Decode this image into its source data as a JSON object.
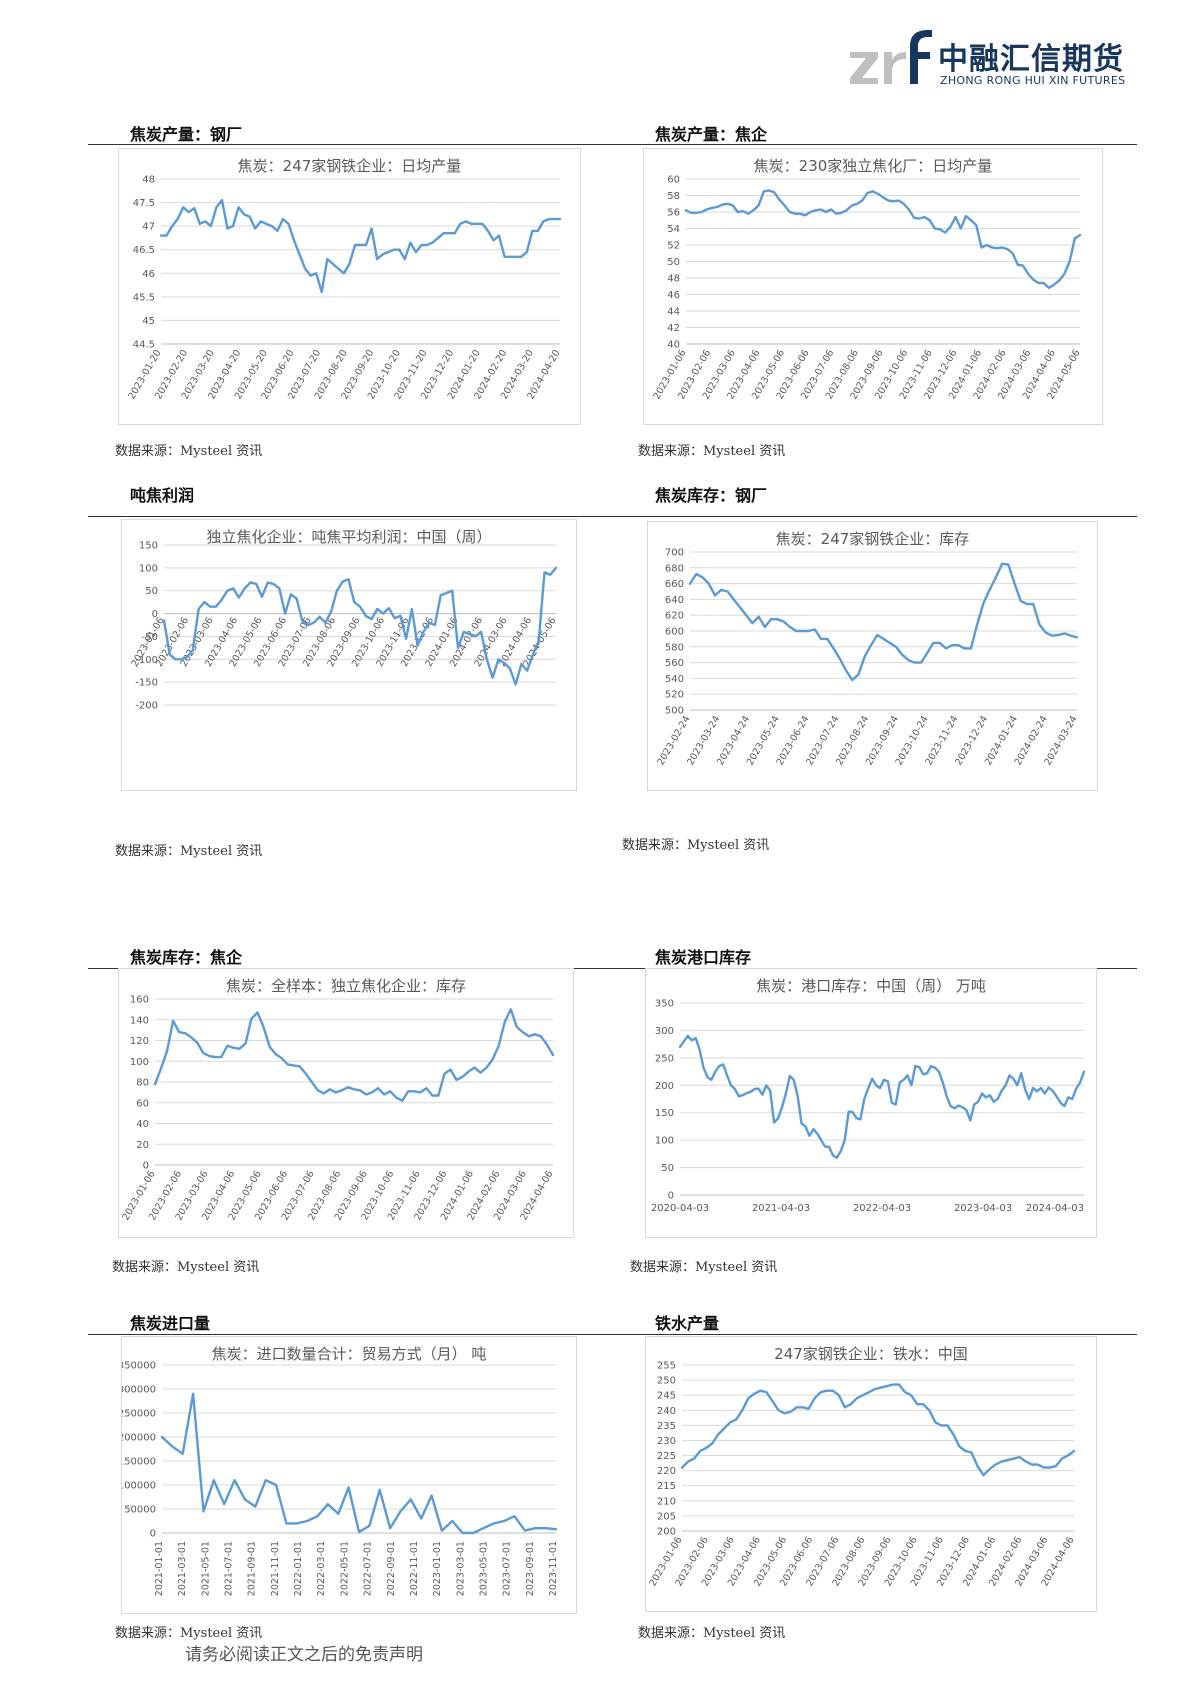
{
  "header": {
    "logo_cn": "中融汇信期货",
    "logo_en": "ZHONG RONG HUI XIN FUTURES",
    "logo_mark": "zrf"
  },
  "footer": {
    "disclaimer": "请务必阅读正文之后的免责声明"
  },
  "colors": {
    "line": "#5b9bd5",
    "grid": "#d9d9d9",
    "axis_text": "#595959",
    "brand": "#17375e"
  },
  "sections": [
    {
      "title": "焦炭产量：钢厂",
      "source": "数据来源：Mysteel 资讯"
    },
    {
      "title": "焦炭产量：焦企",
      "source": "数据来源：Mysteel 资讯"
    },
    {
      "title": "吨焦利润",
      "source": "数据来源：Mysteel 资讯"
    },
    {
      "title": "焦炭库存：钢厂",
      "source": "数据来源：Mysteel 资讯"
    },
    {
      "title": "焦炭库存：焦企",
      "source": "数据来源：Mysteel 资讯"
    },
    {
      "title": "焦炭港口库存",
      "source": "数据来源：Mysteel 资讯"
    },
    {
      "title": "焦炭进口量",
      "source": "数据来源：Mysteel 资讯"
    },
    {
      "title": "铁水产量",
      "source": "数据来源：Mysteel 资讯"
    }
  ],
  "chart_data": [
    {
      "type": "line",
      "title": "焦炭：247家钢铁企业：日均产量",
      "ylim": [
        44.5,
        48
      ],
      "yticks": [
        "44.5",
        "45",
        "45.5",
        "46",
        "46.5",
        "47",
        "47.5",
        "48"
      ],
      "xticks": [
        "2023-01-20",
        "2023-02-20",
        "2023-03-20",
        "2023-04-20",
        "2023-05-20",
        "2023-06-20",
        "2023-07-20",
        "2023-08-20",
        "2023-09-20",
        "2023-10-20",
        "2023-11-20",
        "2023-12-20",
        "2024-01-20",
        "2024-02-20",
        "2024-03-20",
        "2024-04-20"
      ],
      "values": [
        46.8,
        46.8,
        47.0,
        47.15,
        47.4,
        47.3,
        47.38,
        47.05,
        47.1,
        47.0,
        47.4,
        47.55,
        46.95,
        47.0,
        47.4,
        47.25,
        47.2,
        46.95,
        47.1,
        47.05,
        47.0,
        46.9,
        47.15,
        47.05,
        46.7,
        46.4,
        46.1,
        45.95,
        46.0,
        45.6,
        46.3,
        46.2,
        46.1,
        46.0,
        46.2,
        46.6,
        46.6,
        46.6,
        46.95,
        46.3,
        46.4,
        46.45,
        46.5,
        46.5,
        46.3,
        46.65,
        46.45,
        46.6,
        46.6,
        46.65,
        46.75,
        46.85,
        46.85,
        46.85,
        47.05,
        47.1,
        47.05,
        47.05,
        47.05,
        46.9,
        46.7,
        46.8,
        46.35,
        46.35,
        46.35,
        46.35,
        46.45,
        46.9,
        46.9,
        47.1,
        47.15,
        47.15,
        47.15
      ]
    },
    {
      "type": "line",
      "title": "焦炭：230家独立焦化厂：日均产量",
      "ylim": [
        40,
        60
      ],
      "yticks": [
        "40",
        "42",
        "44",
        "46",
        "48",
        "50",
        "52",
        "54",
        "56",
        "58",
        "60"
      ],
      "xticks": [
        "2023-01-06",
        "2023-02-06",
        "2023-03-06",
        "2023-04-06",
        "2023-05-06",
        "2023-06-06",
        "2023-07-06",
        "2023-08-06",
        "2023-09-06",
        "2023-10-06",
        "2023-11-06",
        "2023-12-06",
        "2024-01-06",
        "2024-02-06",
        "2024-03-06",
        "2024-04-06",
        "2024-05-06"
      ],
      "values": [
        56.2,
        55.9,
        55.9,
        56.0,
        56.3,
        56.5,
        56.6,
        56.9,
        57.0,
        56.8,
        56.0,
        56.1,
        55.8,
        56.2,
        56.8,
        58.5,
        58.6,
        58.4,
        57.5,
        56.8,
        56.0,
        55.8,
        55.8,
        55.6,
        56.0,
        56.2,
        56.3,
        56.0,
        56.3,
        55.8,
        55.9,
        56.2,
        56.8,
        57.0,
        57.4,
        58.3,
        58.5,
        58.2,
        57.8,
        57.4,
        57.3,
        57.4,
        57.0,
        56.3,
        55.3,
        55.2,
        55.4,
        55.0,
        54.0,
        53.9,
        53.5,
        54.2,
        55.4,
        54.0,
        55.5,
        55.0,
        54.4,
        51.7,
        52.0,
        51.7,
        51.6,
        51.7,
        51.5,
        51.0,
        49.6,
        49.5,
        48.5,
        47.8,
        47.4,
        47.4,
        46.8,
        47.2,
        47.7,
        48.5,
        50.0,
        52.8,
        53.2
      ]
    },
    {
      "type": "line",
      "title": "独立焦化企业：吨焦平均利润：中国（周）",
      "ylim": [
        -200,
        150
      ],
      "yticks": [
        "-200",
        "-150",
        "-100",
        "-50",
        "0",
        "50",
        "100",
        "150"
      ],
      "xticks": [
        "2023-01-06",
        "2023-02-06",
        "2023-03-06",
        "2023-04-06",
        "2023-05-06",
        "2023-06-06",
        "2023-07-06",
        "2023-08-06",
        "2023-09-06",
        "2023-10-06",
        "2023-11-06",
        "2023-12-06",
        "2024-01-06",
        "2024-02-06",
        "2024-03-06",
        "2024-04-06",
        "2024-05-06"
      ],
      "values": [
        -15,
        -90,
        -100,
        -100,
        -95,
        -80,
        10,
        25,
        15,
        15,
        30,
        50,
        55,
        35,
        55,
        68,
        65,
        37,
        68,
        65,
        55,
        0,
        42,
        33,
        -17,
        -25,
        -20,
        -7,
        -20,
        5,
        50,
        70,
        75,
        25,
        15,
        -5,
        -12,
        10,
        0,
        12,
        -10,
        -5,
        -55,
        10,
        -70,
        -40,
        -20,
        -25,
        40,
        45,
        50,
        -75,
        -40,
        -45,
        -50,
        -40,
        -100,
        -140,
        -100,
        -108,
        -120,
        -155,
        -110,
        -125,
        -90,
        -60,
        90,
        85,
        100
      ]
    },
    {
      "type": "line",
      "title": "焦炭：247家钢铁企业：库存",
      "ylim": [
        500,
        700
      ],
      "yticks": [
        "500",
        "520",
        "540",
        "560",
        "580",
        "600",
        "620",
        "640",
        "660",
        "680",
        "700"
      ],
      "xticks": [
        "2023-02-24",
        "2023-03-24",
        "2023-04-24",
        "2023-05-24",
        "2023-06-24",
        "2023-07-24",
        "2023-08-24",
        "2023-09-24",
        "2023-10-24",
        "2023-11-24",
        "2023-12-24",
        "2024-01-24",
        "2024-02-24",
        "2024-03-24"
      ],
      "values": [
        660,
        672,
        668,
        660,
        645,
        652,
        650,
        640,
        630,
        620,
        610,
        618,
        605,
        615,
        615,
        612,
        605,
        600,
        600,
        600,
        602,
        590,
        590,
        578,
        565,
        550,
        538,
        545,
        568,
        582,
        595,
        590,
        585,
        580,
        570,
        563,
        560,
        560,
        572,
        585,
        585,
        578,
        582,
        582,
        578,
        578,
        608,
        635,
        652,
        668,
        685,
        684,
        660,
        638,
        634,
        634,
        608,
        598,
        594,
        595,
        597,
        594,
        592
      ]
    },
    {
      "type": "line",
      "title": "焦炭：全样本：独立焦化企业：库存",
      "ylim": [
        0,
        160
      ],
      "yticks": [
        "0",
        "20",
        "40",
        "60",
        "80",
        "100",
        "120",
        "140",
        "160"
      ],
      "xticks": [
        "2023-01-06",
        "2023-02-06",
        "2023-03-06",
        "2023-04-06",
        "2023-05-06",
        "2023-06-06",
        "2023-07-06",
        "2023-08-06",
        "2023-09-06",
        "2023-10-06",
        "2023-11-06",
        "2023-12-06",
        "2024-01-06",
        "2024-02-06",
        "2024-03-06",
        "2024-04-06"
      ],
      "values": [
        78,
        93,
        110,
        139,
        128,
        127,
        123,
        118,
        108,
        105,
        104,
        104,
        115,
        113,
        112,
        117,
        141,
        147,
        133,
        114,
        107,
        103,
        97,
        96,
        95,
        88,
        80,
        72,
        69,
        73,
        70,
        72,
        75,
        73,
        72,
        68,
        70,
        74,
        68,
        71,
        65,
        62,
        71,
        71,
        70,
        74,
        67,
        67,
        88,
        92,
        82,
        85,
        90,
        94,
        89,
        94,
        102,
        115,
        138,
        150,
        133,
        128,
        124,
        126,
        124,
        116,
        106
      ]
    },
    {
      "type": "line",
      "title": "焦炭：港口库存：中国（周） 万吨",
      "ylim": [
        0,
        350
      ],
      "yticks": [
        "0",
        "50",
        "100",
        "150",
        "200",
        "250",
        "300",
        "350"
      ],
      "xticks": [
        "2020-04-03",
        "2021-04-03",
        "2022-04-03",
        "2023-04-03",
        "2024-04-03"
      ],
      "x_start": "2020-04-03",
      "x_end": "2024-04-03",
      "values": [
        270,
        280,
        290,
        282,
        286,
        265,
        232,
        215,
        210,
        225,
        235,
        238,
        218,
        200,
        193,
        180,
        182,
        186,
        188,
        193,
        194,
        183,
        200,
        190,
        132,
        140,
        160,
        185,
        217,
        210,
        180,
        130,
        125,
        108,
        120,
        112,
        100,
        88,
        88,
        72,
        68,
        80,
        100,
        152,
        151,
        140,
        138,
        175,
        195,
        212,
        200,
        195,
        210,
        207,
        168,
        165,
        205,
        210,
        218,
        200,
        235,
        233,
        220,
        222,
        235,
        232,
        225,
        205,
        180,
        162,
        158,
        163,
        160,
        155,
        136,
        165,
        170,
        185,
        178,
        182,
        170,
        175,
        190,
        200,
        218,
        212,
        200,
        222,
        192,
        175,
        195,
        189,
        195,
        185,
        196,
        190,
        180,
        168,
        162,
        178,
        175,
        194,
        205,
        225
      ]
    },
    {
      "type": "line",
      "title": "焦炭：进口数量合计：贸易方式（月） 吨",
      "ylim": [
        0,
        350000
      ],
      "yticks": [
        "0",
        "50000",
        "100000",
        "150000",
        "200000",
        "250000",
        "300000",
        "350000"
      ],
      "xticks": [
        "2021-01-01",
        "2021-03-01",
        "2021-05-01",
        "2021-07-01",
        "2021-09-01",
        "2021-11-01",
        "2022-01-01",
        "2022-03-01",
        "2022-05-01",
        "2022-07-01",
        "2022-09-01",
        "2022-11-01",
        "2023-01-01",
        "2023-03-01",
        "2023-05-01",
        "2023-07-01",
        "2023-09-01",
        "2023-11-01"
      ],
      "values": [
        200000,
        180000,
        165000,
        290000,
        45000,
        110000,
        60000,
        110000,
        70000,
        55000,
        110000,
        100000,
        20000,
        20000,
        25000,
        35000,
        60000,
        40000,
        95000,
        2000,
        15000,
        90000,
        10000,
        45000,
        70000,
        30000,
        78000,
        5000,
        25000,
        0,
        0,
        10000,
        20000,
        25000,
        35000,
        5000,
        10000,
        10000,
        8000
      ]
    },
    {
      "type": "line",
      "title": "247家钢铁企业：铁水：中国",
      "ylim": [
        200,
        255
      ],
      "yticks": [
        "200",
        "205",
        "210",
        "215",
        "220",
        "225",
        "230",
        "235",
        "240",
        "245",
        "250",
        "255"
      ],
      "xticks": [
        "2023-01-06",
        "2023-02-06",
        "2023-03-06",
        "2023-04-06",
        "2023-05-06",
        "2023-06-06",
        "2023-07-06",
        "2023-08-06",
        "2023-09-06",
        "2023-10-06",
        "2023-11-06",
        "2023-12-06",
        "2024-01-06",
        "2024-02-06",
        "2024-03-06",
        "2024-04-06"
      ],
      "values": [
        221,
        223,
        224,
        226.5,
        227.5,
        229,
        232,
        234,
        236,
        237,
        240,
        244,
        245.5,
        246.5,
        246,
        243,
        240,
        239,
        239.5,
        241,
        241,
        240.5,
        244,
        246,
        246.5,
        246.5,
        245,
        241,
        242,
        244,
        245,
        246,
        247,
        247.5,
        248,
        248.5,
        248.5,
        246,
        245,
        242,
        242,
        240,
        236,
        235,
        235,
        232,
        228,
        226.5,
        226,
        221.5,
        218.5,
        220.5,
        222,
        223,
        223.5,
        224,
        224.5,
        223,
        222,
        222,
        221,
        221,
        221.5,
        224,
        225,
        226.5
      ]
    }
  ]
}
